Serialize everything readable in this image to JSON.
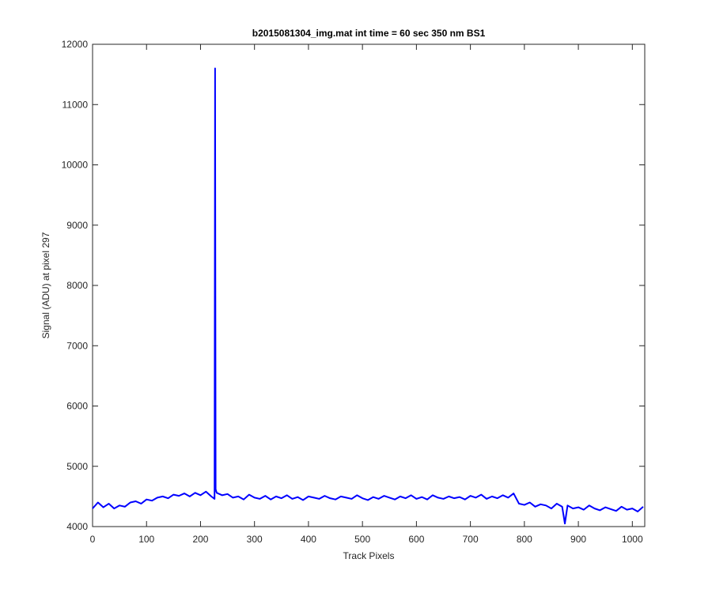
{
  "chart_data": {
    "type": "line",
    "title": "b2015081304_img.mat int time = 60 sec  350 nm BS1",
    "x_label": "Track Pixels",
    "y_label": "Signal (ADU) at pixel 297",
    "x": [
      0,
      10,
      20,
      30,
      40,
      50,
      60,
      70,
      80,
      90,
      100,
      110,
      120,
      130,
      140,
      150,
      160,
      170,
      180,
      190,
      200,
      210,
      220,
      226,
      227,
      228,
      230,
      240,
      250,
      260,
      270,
      280,
      290,
      300,
      310,
      320,
      330,
      340,
      350,
      360,
      370,
      380,
      390,
      400,
      410,
      420,
      430,
      440,
      450,
      460,
      470,
      480,
      490,
      500,
      510,
      520,
      530,
      540,
      550,
      560,
      570,
      580,
      590,
      600,
      610,
      620,
      630,
      640,
      650,
      660,
      670,
      680,
      690,
      700,
      710,
      720,
      730,
      740,
      750,
      760,
      770,
      780,
      790,
      800,
      810,
      820,
      830,
      840,
      850,
      860,
      870,
      875,
      880,
      890,
      900,
      910,
      920,
      930,
      940,
      950,
      960,
      970,
      980,
      990,
      1000,
      1010,
      1020
    ],
    "series": [
      {
        "name": "signal",
        "color": "#0000ff",
        "values": [
          4300,
          4400,
          4320,
          4380,
          4300,
          4350,
          4330,
          4400,
          4420,
          4380,
          4450,
          4430,
          4480,
          4500,
          4470,
          4530,
          4510,
          4550,
          4500,
          4560,
          4520,
          4580,
          4500,
          4460,
          11600,
          4620,
          4560,
          4520,
          4540,
          4480,
          4500,
          4450,
          4530,
          4480,
          4460,
          4510,
          4450,
          4500,
          4470,
          4520,
          4460,
          4490,
          4440,
          4500,
          4480,
          4460,
          4510,
          4470,
          4450,
          4500,
          4480,
          4460,
          4520,
          4470,
          4440,
          4490,
          4460,
          4510,
          4480,
          4450,
          4500,
          4470,
          4520,
          4460,
          4490,
          4450,
          4520,
          4480,
          4460,
          4500,
          4470,
          4490,
          4450,
          4510,
          4480,
          4530,
          4460,
          4500,
          4470,
          4520,
          4480,
          4550,
          4380,
          4360,
          4400,
          4330,
          4370,
          4350,
          4300,
          4380,
          4330,
          4050,
          4350,
          4300,
          4320,
          4280,
          4350,
          4300,
          4270,
          4320,
          4290,
          4260,
          4330,
          4280,
          4300,
          4250,
          4330
        ]
      }
    ],
    "xlim": [
      0,
      1023
    ],
    "ylim": [
      4000,
      12000
    ],
    "xticks": [
      0,
      100,
      200,
      300,
      400,
      500,
      600,
      700,
      800,
      900,
      1000
    ],
    "yticks": [
      4000,
      5000,
      6000,
      7000,
      8000,
      9000,
      10000,
      11000,
      12000
    ],
    "grid": false
  }
}
